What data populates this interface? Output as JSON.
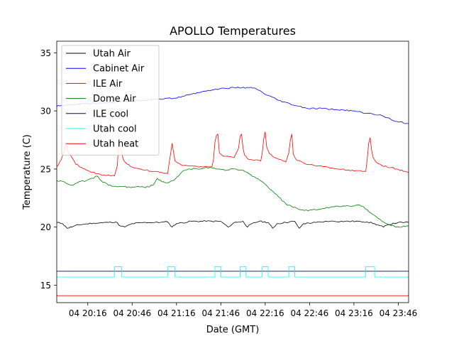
{
  "chart_data": {
    "type": "line",
    "title": "APOLLO Temperatures",
    "xlabel": "Date (GMT)",
    "ylabel": "Temperature (C)",
    "x_unit": "minutes since 04 20:00 GMT",
    "xlim": [
      -5,
      233
    ],
    "ylim": [
      13.5,
      36.0
    ],
    "xticks": [
      {
        "x": 16,
        "label": "04 20:16"
      },
      {
        "x": 46,
        "label": "04 20:46"
      },
      {
        "x": 76,
        "label": "04 21:16"
      },
      {
        "x": 106,
        "label": "04 21:46"
      },
      {
        "x": 136,
        "label": "04 22:16"
      },
      {
        "x": 166,
        "label": "04 22:46"
      },
      {
        "x": 196,
        "label": "04 23:16"
      },
      {
        "x": 226,
        "label": "04 23:46"
      }
    ],
    "yticks": [
      {
        "y": 15,
        "label": "15"
      },
      {
        "y": 20,
        "label": "20"
      },
      {
        "y": 25,
        "label": "25"
      },
      {
        "y": 30,
        "label": "30"
      },
      {
        "y": 35,
        "label": "35"
      }
    ],
    "grid": false,
    "legend_position": "upper-left",
    "series": [
      {
        "name": "Utah Air",
        "color": "#000000",
        "x": [
          -5,
          -1,
          2,
          10,
          20,
          30,
          35,
          38,
          41,
          46,
          55,
          65,
          70,
          73,
          76,
          86,
          96,
          106,
          108,
          111,
          115,
          121,
          124,
          127,
          132,
          138,
          141,
          144,
          150,
          156,
          159,
          162,
          170,
          180,
          190,
          200,
          205,
          210,
          216,
          219,
          226,
          233
        ],
        "y": [
          20.4,
          20.3,
          19.9,
          20.2,
          20.35,
          20.4,
          20.45,
          20.1,
          20.0,
          20.3,
          20.4,
          20.4,
          20.45,
          20.0,
          20.3,
          20.5,
          20.5,
          20.5,
          20.3,
          20.0,
          20.4,
          20.5,
          20.0,
          20.3,
          20.5,
          20.4,
          19.9,
          20.3,
          20.4,
          20.5,
          19.9,
          20.3,
          20.4,
          20.5,
          20.5,
          20.5,
          20.45,
          20.3,
          20.0,
          20.2,
          20.4,
          20.4
        ]
      },
      {
        "name": "Cabinet Air",
        "color": "#0000ff",
        "x": [
          -5,
          10,
          25,
          40,
          50,
          60,
          75,
          85,
          95,
          105,
          115,
          125,
          130,
          135,
          145,
          155,
          165,
          175,
          185,
          195,
          205,
          215,
          225,
          233
        ],
        "y": [
          30.4,
          30.6,
          30.7,
          30.8,
          30.9,
          31.0,
          31.1,
          31.4,
          31.7,
          31.9,
          32.0,
          32.0,
          31.9,
          31.5,
          30.9,
          30.5,
          30.2,
          30.2,
          30.1,
          30.0,
          29.8,
          29.6,
          29.1,
          28.9
        ]
      },
      {
        "name": "ILE Air",
        "color": "#ff0000",
        "x": [
          -5,
          -2,
          0,
          1,
          3,
          8,
          15,
          25,
          34,
          36,
          37,
          38,
          40,
          45,
          55,
          65,
          70,
          71,
          72,
          73,
          75,
          80,
          90,
          100,
          101,
          102,
          103,
          104,
          105,
          108,
          115,
          118,
          119,
          120,
          121,
          122,
          124,
          127,
          133,
          134,
          135,
          136,
          137,
          139,
          142,
          150,
          152,
          153,
          154,
          155,
          157,
          165,
          175,
          185,
          195,
          204,
          205,
          206,
          207,
          208,
          209,
          211,
          215,
          225,
          233
        ],
        "y": [
          25.2,
          25.8,
          26.5,
          27.2,
          26.4,
          25.4,
          24.9,
          24.5,
          24.4,
          25.3,
          27.4,
          26.9,
          25.8,
          25.2,
          24.9,
          24.7,
          24.6,
          25.5,
          26.3,
          27.2,
          25.7,
          25.3,
          25.2,
          25.2,
          25.8,
          27.3,
          27.9,
          28.0,
          26.4,
          26.1,
          26.0,
          26.8,
          27.8,
          28.0,
          26.8,
          26.2,
          25.9,
          25.8,
          25.7,
          26.4,
          27.6,
          28.2,
          26.9,
          26.3,
          26.0,
          25.6,
          26.4,
          27.5,
          28.0,
          26.3,
          25.8,
          25.4,
          25.2,
          25.0,
          24.9,
          24.8,
          25.8,
          27.2,
          27.7,
          26.6,
          26.0,
          25.6,
          25.3,
          25.0,
          24.7
        ]
      },
      {
        "name": "Dome Air",
        "color": "#008000",
        "x": [
          -5,
          0,
          5,
          10,
          15,
          20,
          22,
          25,
          30,
          35,
          40,
          45,
          50,
          55,
          60,
          63,
          66,
          70,
          75,
          80,
          85,
          90,
          95,
          100,
          105,
          110,
          115,
          120,
          125,
          130,
          135,
          140,
          145,
          150,
          155,
          160,
          165,
          170,
          175,
          180,
          185,
          190,
          195,
          200,
          205,
          210,
          215,
          220,
          225,
          233
        ],
        "y": [
          24.0,
          23.9,
          23.6,
          23.9,
          24.0,
          24.2,
          24.4,
          24.0,
          23.6,
          23.5,
          23.5,
          23.4,
          23.5,
          23.4,
          23.6,
          24.2,
          23.9,
          23.8,
          24.1,
          24.8,
          25.0,
          25.0,
          25.1,
          25.1,
          25.0,
          24.9,
          25.0,
          24.9,
          24.6,
          24.2,
          23.8,
          23.2,
          22.6,
          22.0,
          21.7,
          21.5,
          21.4,
          21.5,
          21.6,
          21.7,
          21.8,
          21.8,
          21.8,
          21.9,
          21.5,
          21.0,
          20.5,
          20.2,
          20.0,
          20.1
        ]
      },
      {
        "name": "ILE cool",
        "color": "#00008b",
        "x": [
          -5,
          233
        ],
        "y": [
          16.2,
          16.2
        ]
      },
      {
        "name": "Utah cool",
        "color": "#00ffff",
        "x": [
          -5,
          34,
          34,
          39,
          39,
          70,
          70,
          75,
          75,
          102,
          102,
          106,
          106,
          119,
          119,
          123,
          123,
          134,
          134,
          138,
          138,
          152,
          152,
          156,
          156,
          204,
          204,
          210,
          210,
          233
        ],
        "y": [
          15.7,
          15.7,
          16.6,
          16.6,
          15.7,
          15.7,
          16.6,
          16.6,
          15.7,
          15.7,
          16.6,
          16.6,
          15.7,
          15.7,
          16.6,
          16.6,
          15.7,
          15.7,
          16.6,
          16.6,
          15.7,
          15.7,
          16.6,
          16.6,
          15.7,
          15.7,
          16.6,
          16.6,
          15.7,
          15.7
        ]
      },
      {
        "name": "Utah heat",
        "color": "#ff0000",
        "x": [
          -5,
          233
        ],
        "y": [
          14.1,
          14.1
        ]
      }
    ]
  }
}
